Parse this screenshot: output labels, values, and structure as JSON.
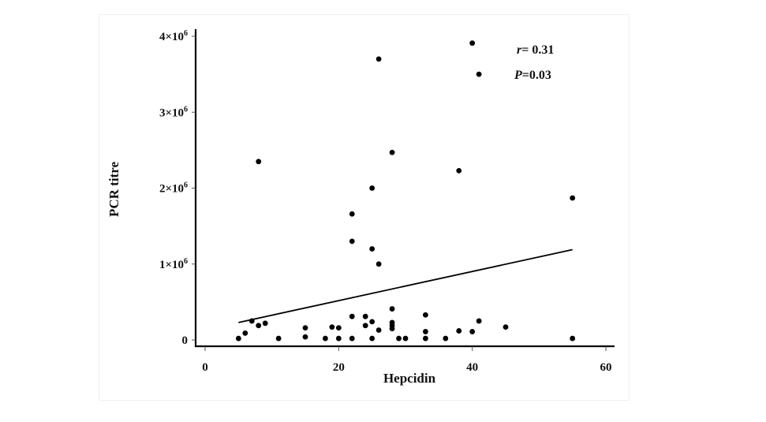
{
  "chart_data": {
    "type": "scatter",
    "title": "",
    "xlabel": "Hepcidin",
    "ylabel": "PCR titre",
    "xlim": [
      -1.5,
      61.5
    ],
    "ylim": [
      -80000,
      4100000
    ],
    "x_ticks": [
      0,
      20,
      40,
      60
    ],
    "x_tick_labels": [
      "0",
      "20",
      "40",
      "60"
    ],
    "y_ticks": [
      0,
      1000000,
      2000000,
      3000000,
      4000000
    ],
    "y_tick_labels": [
      "0",
      "1×10⁶",
      "2×10⁶",
      "3×10⁶",
      "4×10⁶"
    ],
    "grid": false,
    "legend": null,
    "annotations": [
      {
        "text_italic": "r",
        "text": "= 0.31"
      },
      {
        "text_italic": "P",
        "text": "=0.03"
      }
    ],
    "series": [
      {
        "name": "observations",
        "points": [
          [
            5,
            20000
          ],
          [
            6,
            90000
          ],
          [
            7,
            250000
          ],
          [
            8,
            190000
          ],
          [
            9,
            220000
          ],
          [
            8,
            2350000
          ],
          [
            11,
            20000
          ],
          [
            15,
            40000
          ],
          [
            15,
            160000
          ],
          [
            18,
            20000
          ],
          [
            19,
            170000
          ],
          [
            20,
            20000
          ],
          [
            20,
            160000
          ],
          [
            22,
            20000
          ],
          [
            22,
            310000
          ],
          [
            22,
            1300000
          ],
          [
            22,
            1660000
          ],
          [
            24,
            190000
          ],
          [
            24,
            310000
          ],
          [
            25,
            20000
          ],
          [
            25,
            240000
          ],
          [
            25,
            1200000
          ],
          [
            25,
            2000000
          ],
          [
            26,
            130000
          ],
          [
            26,
            1000000
          ],
          [
            26,
            3700000
          ],
          [
            28,
            150000
          ],
          [
            28,
            190000
          ],
          [
            28,
            230000
          ],
          [
            28,
            410000
          ],
          [
            28,
            2470000
          ],
          [
            29,
            20000
          ],
          [
            30,
            20000
          ],
          [
            33,
            20000
          ],
          [
            33,
            110000
          ],
          [
            33,
            330000
          ],
          [
            36,
            20000
          ],
          [
            38,
            120000
          ],
          [
            38,
            2230000
          ],
          [
            40,
            110000
          ],
          [
            40,
            3910000
          ],
          [
            41,
            250000
          ],
          [
            41,
            3500000
          ],
          [
            45,
            170000
          ],
          [
            55,
            20000
          ],
          [
            55,
            1870000
          ]
        ]
      }
    ],
    "regression_line": {
      "x": [
        5,
        55
      ],
      "y": [
        230000,
        1190000
      ]
    }
  },
  "labels": {
    "ylabel": "PCR titre",
    "xlabel": "Hepcidin",
    "r_symbol": "r",
    "r_value": "= 0.31",
    "p_symbol": "P",
    "p_value": "=0.03"
  }
}
